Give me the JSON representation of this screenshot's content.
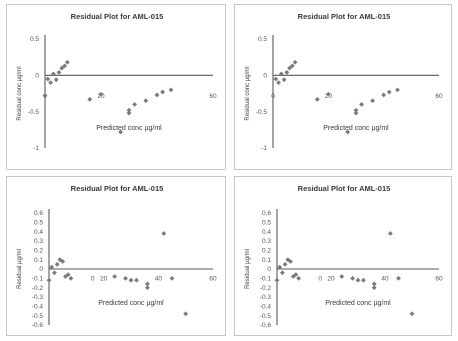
{
  "chart_data": [
    {
      "type": "scatter",
      "title": "Residual Plot for AML-015",
      "xlabel": "Predicted conc µg/ml",
      "ylabel": "Residual conc µg/ml",
      "xlim": [
        0,
        60
      ],
      "ylim": [
        -1,
        0.5
      ],
      "xticks": [
        {
          "v": 20,
          "label": "20"
        },
        {
          "v": 60,
          "label": "60"
        }
      ],
      "yticks": [
        {
          "v": 0.5,
          "label": "0.5"
        },
        {
          "v": 0,
          "label": "0"
        },
        {
          "v": -0.5,
          "label": "-0.5"
        },
        {
          "v": -1,
          "label": "-1"
        }
      ],
      "x_label_y": -0.28,
      "zero_tick": {
        "x": 0,
        "label": "0"
      },
      "x": [
        0,
        1,
        2,
        3,
        4,
        5,
        6,
        7,
        8,
        16,
        20,
        27,
        30,
        30,
        32,
        36,
        40,
        42,
        45
      ],
      "y": [
        -0.28,
        -0.05,
        -0.1,
        0.02,
        -0.06,
        0.04,
        0.1,
        0.13,
        0.18,
        -0.33,
        -0.26,
        -0.78,
        -0.48,
        -0.52,
        -0.4,
        -0.35,
        -0.27,
        -0.23,
        -0.2
      ],
      "grid": false
    },
    {
      "type": "scatter",
      "title": "Residual Plot for AML-015",
      "xlabel": "Predicted conc µg/ml",
      "ylabel": "Residual conc µg/ml",
      "xlim": [
        0,
        60
      ],
      "ylim": [
        -1,
        0.5
      ],
      "xticks": [
        {
          "v": 20,
          "label": "20"
        },
        {
          "v": 60,
          "label": "60"
        }
      ],
      "yticks": [
        {
          "v": 0.5,
          "label": "0.5"
        },
        {
          "v": 0,
          "label": "0"
        },
        {
          "v": -0.5,
          "label": "-0.5"
        },
        {
          "v": -1,
          "label": "-1"
        }
      ],
      "x_label_y": -0.28,
      "zero_tick": {
        "x": 0,
        "label": "0"
      },
      "x": [
        1,
        2,
        3,
        4,
        5,
        6,
        7,
        8,
        16,
        20,
        27,
        30,
        30,
        32,
        36,
        40,
        42,
        45
      ],
      "y": [
        -0.05,
        -0.1,
        0.02,
        -0.06,
        0.04,
        0.1,
        0.13,
        0.18,
        -0.33,
        -0.26,
        -0.78,
        -0.48,
        -0.52,
        -0.4,
        -0.35,
        -0.27,
        -0.23,
        -0.2
      ],
      "grid": false
    },
    {
      "type": "scatter",
      "title": "Residual Plot for AML-015",
      "xlabel": "Predicted conc µg/ml",
      "ylabel": "Residual µg/ml",
      "xlim": [
        0,
        60
      ],
      "ylim": [
        -0.6,
        0.6
      ],
      "xticks": [
        {
          "v": 20,
          "label": "20"
        },
        {
          "v": 40,
          "label": "40"
        },
        {
          "v": 60,
          "label": "60"
        }
      ],
      "yticks": [
        {
          "v": 0.6,
          "label": "0.6"
        },
        {
          "v": 0.5,
          "label": "0.5"
        },
        {
          "v": 0.4,
          "label": "0.4"
        },
        {
          "v": 0.3,
          "label": "0.3"
        },
        {
          "v": 0.2,
          "label": "0.2"
        },
        {
          "v": 0.1,
          "label": "0.1"
        },
        {
          "v": 0,
          "label": "0"
        },
        {
          "v": -0.1,
          "label": "-0.1"
        },
        {
          "v": -0.2,
          "label": "-0.2"
        },
        {
          "v": -0.3,
          "label": "-0.3"
        },
        {
          "v": -0.4,
          "label": "-0.4"
        },
        {
          "v": -0.5,
          "label": "-0.5"
        },
        {
          "v": -0.6,
          "label": "-0.6"
        }
      ],
      "x_label_y": -0.1,
      "zero_tick": {
        "x": 16,
        "label": "0"
      },
      "x": [
        0,
        1,
        2,
        3,
        4,
        5,
        6,
        7,
        8,
        24,
        28,
        30,
        32,
        36,
        36,
        42,
        45,
        50
      ],
      "y": [
        -0.12,
        0.02,
        -0.04,
        0.05,
        0.1,
        0.08,
        -0.08,
        -0.06,
        -0.1,
        -0.08,
        -0.1,
        -0.12,
        -0.12,
        -0.16,
        -0.2,
        0.38,
        -0.1,
        -0.48
      ],
      "grid": false
    },
    {
      "type": "scatter",
      "title": "Residual Plot for AML-015",
      "xlabel": "Predicted conc µg/ml",
      "ylabel": "Residual µg/ml",
      "xlim": [
        0,
        60
      ],
      "ylim": [
        -0.6,
        0.6
      ],
      "xticks": [
        {
          "v": 20,
          "label": "20"
        },
        {
          "v": 40,
          "label": "40"
        },
        {
          "v": 60,
          "label": "60"
        }
      ],
      "yticks": [
        {
          "v": 0.6,
          "label": "0.6"
        },
        {
          "v": 0.5,
          "label": "0.5"
        },
        {
          "v": 0.4,
          "label": "0.4"
        },
        {
          "v": 0.3,
          "label": "0.3"
        },
        {
          "v": 0.2,
          "label": "0.2"
        },
        {
          "v": 0.1,
          "label": "0.1"
        },
        {
          "v": 0,
          "label": "0"
        },
        {
          "v": -0.1,
          "label": "-0.1"
        },
        {
          "v": -0.2,
          "label": "-0.2"
        },
        {
          "v": -0.3,
          "label": "-0.3"
        },
        {
          "v": -0.4,
          "label": "-0.4"
        },
        {
          "v": -0.5,
          "label": "-0.5"
        },
        {
          "v": -0.6,
          "label": "-0.6"
        }
      ],
      "x_label_y": -0.1,
      "zero_tick": {
        "x": 16,
        "label": "0"
      },
      "x": [
        0,
        1,
        2,
        3,
        4,
        5,
        6,
        7,
        8,
        24,
        28,
        30,
        32,
        36,
        36,
        42,
        45,
        50
      ],
      "y": [
        -0.12,
        0.02,
        -0.04,
        0.05,
        0.1,
        0.08,
        -0.08,
        -0.06,
        -0.1,
        -0.08,
        -0.1,
        -0.12,
        -0.12,
        -0.16,
        -0.2,
        0.38,
        -0.1,
        -0.48
      ],
      "grid": false
    }
  ]
}
